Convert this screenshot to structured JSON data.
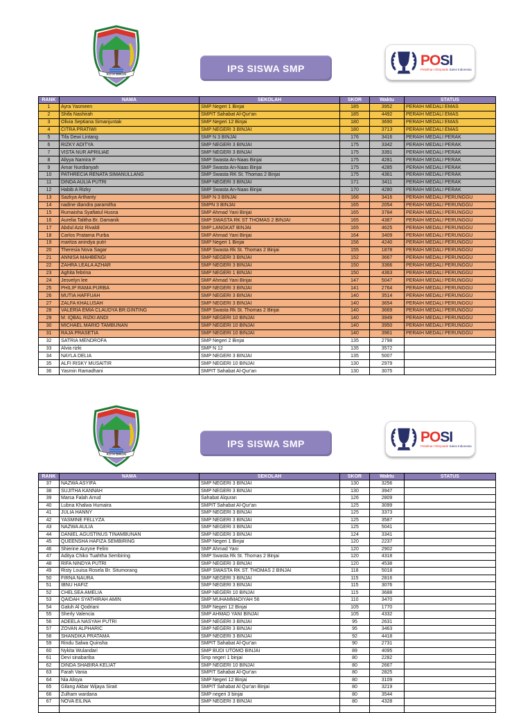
{
  "colors": {
    "header-purple": "#8b7cb5",
    "title-purple": "#8f83bd",
    "gold": "#f6c64a",
    "silver": "#bfbfbf",
    "bronze": "#f4b183",
    "posi-red": "#e6352c",
    "posi-navy": "#273069",
    "border": "#000000"
  },
  "brand": {
    "posi_red_part": "PO",
    "posi_navy_part": "SI",
    "tagline_red": "Pelatihan Olimpiade",
    "tagline_navy": "Sains Indonesia",
    "crest_banner": "KOTA BINJAI"
  },
  "table": {
    "columns": [
      "RANK",
      "NAMA",
      "SEKOLAH",
      "SKOR",
      "Waktu",
      "STATUS"
    ]
  },
  "status_labels": {
    "emas": "PERAIH MEDALI EMAS",
    "perak": "PERAIH MEDALI PERAK",
    "perunggu": "PERAIH MEDALI PERUNGGU"
  },
  "sections": [
    {
      "title": "IPS SISWA SMP",
      "rows": [
        {
          "rank": "1",
          "nama": "Ayra Yasmeen",
          "sekolah": "SMP Negeri 1 Binjai",
          "skor": "185",
          "waktu": "3952",
          "status": "PERAIH MEDALI EMAS",
          "tier": "emas"
        },
        {
          "rank": "2",
          "nama": "Shifa Nashirah",
          "sekolah": "SMPIT Sahabat Al-Qur'an",
          "skor": "185",
          "waktu": "4492",
          "status": "PERAIH MEDALI EMAS",
          "tier": "emas"
        },
        {
          "rank": "3",
          "nama": "Olivia Septiana Simanjuntak",
          "sekolah": "SMP Negeri 12 Binjai",
          "skor": "180",
          "waktu": "3690",
          "status": "PERAIH MEDALI EMAS",
          "tier": "emas"
        },
        {
          "rank": "4",
          "nama": "CITRA PRATIWI",
          "sekolah": "SMP NEGERI 3 BINJAI",
          "skor": "180",
          "waktu": "3713",
          "status": "PERAIH MEDALI EMAS",
          "tier": "emas"
        },
        {
          "rank": "5",
          "nama": "Tifa Dewi Lintang",
          "sekolah": "SMP N 3 BINJAI",
          "skor": "176",
          "waktu": "3416",
          "status": "PERAIH MEDALI PERAK",
          "tier": "perak"
        },
        {
          "rank": "6",
          "nama": "RIZKY ADITYA",
          "sekolah": "SMP NEGERI 3 BINJAI",
          "skor": "175",
          "waktu": "3342",
          "status": "PERAIH MEDALI PERAK",
          "tier": "perak"
        },
        {
          "rank": "7",
          "nama": "VISTA NUR APRILIAE",
          "sekolah": "SMP NEGERI 3 BINJAI",
          "skor": "175",
          "waktu": "3391",
          "status": "PERAIH MEDALI PERAK",
          "tier": "perak"
        },
        {
          "rank": "8",
          "nama": "Aliyya Namira P",
          "sekolah": "SMP Swasta An-Naas Binjai",
          "skor": "175",
          "waktu": "4281",
          "status": "PERAIH MEDALI PERAK",
          "tier": "perak"
        },
        {
          "rank": "9",
          "nama": "Amar Nurdianyah",
          "sekolah": "SMP Swasta An-Naas Binjai",
          "skor": "175",
          "waktu": "4285",
          "status": "PERAIH MEDALI PERAK",
          "tier": "perak"
        },
        {
          "rank": "10",
          "nama": "PATHRECIA RENATA SIMANULLANG",
          "sekolah": "SMP Swasta RK St. Thomas 2 Binjai",
          "skor": "175",
          "waktu": "4361",
          "status": "PERAIH MEDALI PERAK",
          "tier": "perak"
        },
        {
          "rank": "11",
          "nama": "DINDA AULIA PUTRI",
          "sekolah": "SMP NEGERI 3 BINJAI",
          "skor": "171",
          "waktu": "3411",
          "status": "PERAIH MEDALI PERAK",
          "tier": "perak"
        },
        {
          "rank": "12",
          "nama": "Habib A Rizky",
          "sekolah": "SMP Swasta An-Naas Binjai",
          "skor": "170",
          "waktu": "4280",
          "status": "PERAIH MEDALI PERAK",
          "tier": "perak"
        },
        {
          "rank": "13",
          "nama": "Sazkya Arthanty",
          "sekolah": "SMP N 3 BINJAI",
          "skor": "166",
          "waktu": "3416",
          "status": "PERAIH MEDALI PERUNGGU",
          "tier": "perunggu"
        },
        {
          "rank": "14",
          "nama": "nadine diandra paramitha",
          "sekolah": "SMPN 3 BINJAI",
          "skor": "165",
          "waktu": "2054",
          "status": "PERAIH MEDALI PERUNGGU",
          "tier": "perunggu"
        },
        {
          "rank": "15",
          "nama": "Rumaisha Syafiatul Husna",
          "sekolah": "SMP Ahmad Yani Binjai",
          "skor": "165",
          "waktu": "3784",
          "status": "PERAIH MEDALI PERUNGGU",
          "tier": "perunggu"
        },
        {
          "rank": "16",
          "nama": "Aurelia Talitha Br. Damanik",
          "sekolah": "SMP SWASTA RK ST THOMAS 2 BINJAI",
          "skor": "165",
          "waktu": "4387",
          "status": "PERAIH MEDALI PERUNGGU",
          "tier": "perunggu"
        },
        {
          "rank": "17",
          "nama": "Abdul Aziz Rivaldi",
          "sekolah": "SMP LANGKAT BINJAI",
          "skor": "165",
          "waktu": "4625",
          "status": "PERAIH MEDALI PERUNGGU",
          "tier": "perunggu"
        },
        {
          "rank": "18",
          "nama": "Carlos Pratama Purba",
          "sekolah": "SMP Ahmad Yani Binjai",
          "skor": "164",
          "waktu": "3409",
          "status": "PERAIH MEDALI PERUNGGU",
          "tier": "perunggu"
        },
        {
          "rank": "19",
          "nama": "maritza anindya putri",
          "sekolah": "SMP Negeri 1 Binjai",
          "skor": "156",
          "waktu": "4240",
          "status": "PERAIH MEDALI PERUNGGU",
          "tier": "perunggu"
        },
        {
          "rank": "20",
          "nama": "Theresia Nova Sagar",
          "sekolah": "SMP Swasta Rk St. Thomas 2 Binjai",
          "skor": "155",
          "waktu": "1878",
          "status": "PERAIH MEDALI PERUNGGU",
          "tier": "perunggu"
        },
        {
          "rank": "21",
          "nama": "ANNISA MAHBENGI",
          "sekolah": "SMP NEGERI 3 BINJAI",
          "skor": "152",
          "waktu": "3667",
          "status": "PERAIH MEDALI PERUNGGU",
          "tier": "perunggu"
        },
        {
          "rank": "22",
          "nama": "ZAHRA LEALA AZHAR",
          "sekolah": "SMP NEGERI 3 BINJAI",
          "skor": "150",
          "waktu": "3366",
          "status": "PERAIH MEDALI PERUNGGU",
          "tier": "perunggu"
        },
        {
          "rank": "23",
          "nama": "Aghita febrina",
          "sekolah": "SMP NEGERI 1 BINJAI",
          "skor": "150",
          "waktu": "4363",
          "status": "PERAIH MEDALI PERUNGGU",
          "tier": "perunggu"
        },
        {
          "rank": "24",
          "nama": "Jesvelyn lee",
          "sekolah": "SMP Ahmad Yani Binjai",
          "skor": "147",
          "waktu": "5047",
          "status": "PERAIH MEDALI PERUNGGU",
          "tier": "perunggu"
        },
        {
          "rank": "25",
          "nama": "PHILIP RAMA PURBA",
          "sekolah": "SMP NEGERI 3 BINJAI",
          "skor": "141",
          "waktu": "2764",
          "status": "PERAIH MEDALI PERUNGGU",
          "tier": "perunggu"
        },
        {
          "rank": "26",
          "nama": "MUTIA HAFFUAH",
          "sekolah": "SMP NEGERI 3 BINJAI",
          "skor": "140",
          "waktu": "3514",
          "status": "PERAIH MEDALI PERUNGGU",
          "tier": "perunggu"
        },
        {
          "rank": "27",
          "nama": "ZALFA KHALUSAH",
          "sekolah": "SMP NEGERI 3 BINJAI",
          "skor": "140",
          "waktu": "3654",
          "status": "PERAIH MEDALI PERUNGGU",
          "tier": "perunggu"
        },
        {
          "rank": "28",
          "nama": "VALERIA EMIA CLAUDYA BR.GINTING",
          "sekolah": "SMP Swasta Rk St. Thomas 2 Binjai",
          "skor": "140",
          "waktu": "3669",
          "status": "PERAIH MEDALI PERUNGGU",
          "tier": "perunggu"
        },
        {
          "rank": "29",
          "nama": "M. IQBAL RIZKI ANDI",
          "sekolah": "SMP NEGERI 10 BINJAI",
          "skor": "140",
          "waktu": "3949",
          "status": "PERAIH MEDALI PERUNGGU",
          "tier": "perunggu"
        },
        {
          "rank": "30",
          "nama": "MICHAEL MARIO TAMBUNAN",
          "sekolah": "SMP NEGERI 10 BINJAI",
          "skor": "140",
          "waktu": "3950",
          "status": "PERAIH MEDALI PERUNGGU",
          "tier": "perunggu"
        },
        {
          "rank": "31",
          "nama": "RAJA PRASETIA",
          "sekolah": "SMP NEGERI 10 BINJAI",
          "skor": "140",
          "waktu": "3961",
          "status": "PERAIH MEDALI PERUNGGU",
          "tier": "perunggu"
        },
        {
          "rank": "32",
          "nama": "SATRIA MENDROFA",
          "sekolah": "SMP Negeri 2 Binjai",
          "skor": "135",
          "waktu": "2798",
          "status": "",
          "tier": "none"
        },
        {
          "rank": "33",
          "nama": "Alvia rizki",
          "sekolah": "SMP N 12",
          "skor": "135",
          "waktu": "3572",
          "status": "",
          "tier": "none"
        },
        {
          "rank": "34",
          "nama": "NAYLA DELIA",
          "sekolah": "SMP NEGERI 3 BINJAI",
          "skor": "135",
          "waktu": "5007",
          "status": "",
          "tier": "none"
        },
        {
          "rank": "35",
          "nama": "ALFI RISKY MUSAITIR",
          "sekolah": "SMP NEGERI 10 BINJAI",
          "skor": "130",
          "waktu": "2979",
          "status": "",
          "tier": "none"
        },
        {
          "rank": "36",
          "nama": "Yasmin Ramadhani",
          "sekolah": "SMPIT Sahabat Al-Qur'an",
          "skor": "130",
          "waktu": "3075",
          "status": "",
          "tier": "none"
        }
      ]
    },
    {
      "title": "IPS SISWA SMP",
      "rows": [
        {
          "rank": "37",
          "nama": "NAZWA ASYIFA",
          "sekolah": "SMP NEGERI 3 BINJAI",
          "skor": "130",
          "waktu": "3256",
          "status": "",
          "tier": "none"
        },
        {
          "rank": "38",
          "nama": "SUJITHA KANNAH",
          "sekolah": "SMP NEGERI 3 BINJAI",
          "skor": "130",
          "waktu": "3947",
          "status": "",
          "tier": "none"
        },
        {
          "rank": "39",
          "nama": "Marsa Falah Arrud",
          "sekolah": "Sahabat Alquran",
          "skor": "126",
          "waktu": "2809",
          "status": "",
          "tier": "none"
        },
        {
          "rank": "40",
          "nama": "Lubna Khalwa Humaira",
          "sekolah": "SMPIT Sahabat Al-Qur'an",
          "skor": "125",
          "waktu": "3099",
          "status": "",
          "tier": "none"
        },
        {
          "rank": "41",
          "nama": "JULIA HANNY",
          "sekolah": "SMP NEGERI 3 BINJAI",
          "skor": "125",
          "waktu": "3373",
          "status": "",
          "tier": "none"
        },
        {
          "rank": "42",
          "nama": "YASMINE FELLYZA",
          "sekolah": "SMP NEGERI 3 BINJAI",
          "skor": "125",
          "waktu": "3587",
          "status": "",
          "tier": "none"
        },
        {
          "rank": "43",
          "nama": "NAZWA AULIA",
          "sekolah": "SMP NEGERI 3 BINJAI",
          "skor": "125",
          "waktu": "5041",
          "status": "",
          "tier": "none"
        },
        {
          "rank": "44",
          "nama": "DANIEL AGUSTINUS TINAMBUNAN",
          "sekolah": "SMP NEGERI 3 BINJAI",
          "skor": "124",
          "waktu": "3341",
          "status": "",
          "tier": "none"
        },
        {
          "rank": "45",
          "nama": "QUEENSHA HAFIZA SEMBIRING",
          "sekolah": "SMP Negeri 1 Binjai",
          "skor": "120",
          "waktu": "2237",
          "status": "",
          "tier": "none"
        },
        {
          "rank": "46",
          "nama": "Shierine Auryne Felim",
          "sekolah": "SMP Ahmad Yani",
          "skor": "120",
          "waktu": "2902",
          "status": "",
          "tier": "none"
        },
        {
          "rank": "47",
          "nama": "Aditya Chiko Tuahtha Sembiring",
          "sekolah": "SMP Swasta Rk St. Thomas 2 Binjai",
          "skor": "120",
          "waktu": "4318",
          "status": "",
          "tier": "none"
        },
        {
          "rank": "48",
          "nama": "RIFA NINDYA PUTRI",
          "sekolah": "SMP NEGERI 3 BINJAI",
          "skor": "120",
          "waktu": "4538",
          "status": "",
          "tier": "none"
        },
        {
          "rank": "49",
          "nama": "Risty Louisa Rosela Br. Situmorang",
          "sekolah": "SMP SWASTA RK ST. THOMAS 2 BINJAI",
          "skor": "118",
          "waktu": "5018",
          "status": "",
          "tier": "none"
        },
        {
          "rank": "50",
          "nama": "FIRNA NAURA",
          "sekolah": "SMP NEGERI 3 BINJAI",
          "skor": "115",
          "waktu": "2816",
          "status": "",
          "tier": "none"
        },
        {
          "rank": "51",
          "nama": "IBNU HAFIZ",
          "sekolah": "SMP NEGERI 3 BINJAI",
          "skor": "115",
          "waktu": "3076",
          "status": "",
          "tier": "none"
        },
        {
          "rank": "52",
          "nama": "CHELSEA AMELIA",
          "sekolah": "SMP NEGERI 10 BINJAI",
          "skor": "115",
          "waktu": "3688",
          "status": "",
          "tier": "none"
        },
        {
          "rank": "53",
          "nama": "QAIDAH SYATHIRAH AMIN",
          "sekolah": "SMP MUHAMMADIYAH 56",
          "skor": "110",
          "waktu": "3470",
          "status": "",
          "tier": "none"
        },
        {
          "rank": "54",
          "nama": "Galuh Al Qodriani",
          "sekolah": "SMP Negeri 12 Binjai",
          "skor": "105",
          "waktu": "1770",
          "status": "",
          "tier": "none"
        },
        {
          "rank": "55",
          "nama": "Sherly Valencia",
          "sekolah": "SMP AHMAD YANI BINJAI",
          "skor": "105",
          "waktu": "4332",
          "status": "",
          "tier": "none"
        },
        {
          "rank": "56",
          "nama": "ADEELA NASYAH PUTRI",
          "sekolah": "SMP NEGERI 3 BINJAI",
          "skor": "95",
          "waktu": "2631",
          "status": "",
          "tier": "none"
        },
        {
          "rank": "57",
          "nama": "ZOVAN ALPHARIC",
          "sekolah": "SMP NEGERI 3 BINJAI",
          "skor": "95",
          "waktu": "3463",
          "status": "",
          "tier": "none"
        },
        {
          "rank": "58",
          "nama": "SHANDIKA PRATAMA",
          "sekolah": "SMP NEGERI 3 BINJAI",
          "skor": "92",
          "waktu": "4418",
          "status": "",
          "tier": "none"
        },
        {
          "rank": "59",
          "nama": "Rindu Salwa Quinsha",
          "sekolah": "SMPIT Sahabat Al-Qur'an",
          "skor": "90",
          "waktu": "2731",
          "status": "",
          "tier": "none"
        },
        {
          "rank": "60",
          "nama": "Nykita Wulandari",
          "sekolah": "SMP BUDI UTOMO BINJAI",
          "skor": "89",
          "waktu": "4095",
          "status": "",
          "tier": "none"
        },
        {
          "rank": "61",
          "nama": "Devi sinabariba",
          "sekolah": "Smp negeri 1 binjai",
          "skor": "80",
          "waktu": "2282",
          "status": "",
          "tier": "none"
        },
        {
          "rank": "62",
          "nama": "DINDA SHABIRA KELIAT",
          "sekolah": "SMP NEGERI 10 BINJAI",
          "skor": "80",
          "waktu": "2667",
          "status": "",
          "tier": "none"
        },
        {
          "rank": "63",
          "nama": "Farah Vania",
          "sekolah": "SMPIT Sahabat Al-Qur'an",
          "skor": "80",
          "waktu": "2825",
          "status": "",
          "tier": "none"
        },
        {
          "rank": "64",
          "nama": "Nia Alisya",
          "sekolah": "SMP Negeri 12 Binjai",
          "skor": "80",
          "waktu": "3109",
          "status": "",
          "tier": "none"
        },
        {
          "rank": "65",
          "nama": "Gilang Akbar Wijaya Sirait",
          "sekolah": "SMPIT Sahabat Al Qur'an Binjai",
          "skor": "80",
          "waktu": "3219",
          "status": "",
          "tier": "none"
        },
        {
          "rank": "66",
          "nama": "Zulham wardana",
          "sekolah": "SMP negeri 3 binjai",
          "skor": "80",
          "waktu": "3544",
          "status": "",
          "tier": "none"
        },
        {
          "rank": "67",
          "nama": "NOVA EILINA",
          "sekolah": "SMP NEGERI 3 BINJAI",
          "skor": "80",
          "waktu": "4328",
          "status": "",
          "tier": "none"
        },
        {
          "rank": "",
          "nama": "",
          "sekolah": "",
          "skor": "",
          "waktu": "",
          "status": "",
          "tier": "none"
        }
      ]
    }
  ]
}
